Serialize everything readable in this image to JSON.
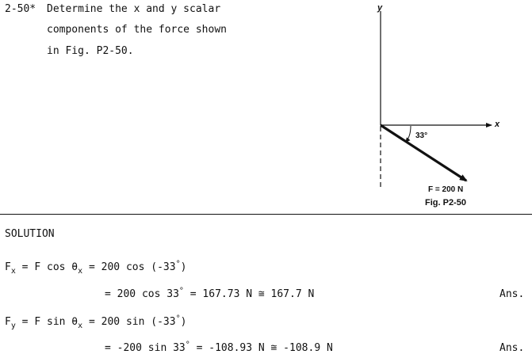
{
  "problem": {
    "number": "2-50*",
    "lines": [
      "Determine the x and y scalar",
      "components of the force shown",
      "in Fig. P2-50."
    ]
  },
  "figure": {
    "y_axis_label": "y",
    "x_axis_label": "x",
    "angle_label": "33°",
    "force_label": "F = 200 N",
    "caption": "Fig. P2-50"
  },
  "solution": {
    "heading": "SOLUTION",
    "ans_label": "Ans.",
    "fx": {
      "sym": "F",
      "sub": "x",
      "eq1_a": " = F cos θ",
      "eq1_sub": "x",
      "eq1_b": " = 200 cos (-33",
      "eq1_sup": "°",
      "eq1_c": ")",
      "eq2_a": "= 200 cos 33",
      "eq2_sup": "°",
      "eq2_b": " = 167.73 N ≅ 167.7 N"
    },
    "fy": {
      "sym": "F",
      "sub": "y",
      "eq1_a": " = F sin θ",
      "eq1_sub": "x",
      "eq1_b": " = 200 sin (-33",
      "eq1_sup": "°",
      "eq1_c": ")",
      "eq2_a": "= -200 sin 33",
      "eq2_sup": "°",
      "eq2_b": " = -108.93 N ≅ -108.9 N"
    }
  }
}
